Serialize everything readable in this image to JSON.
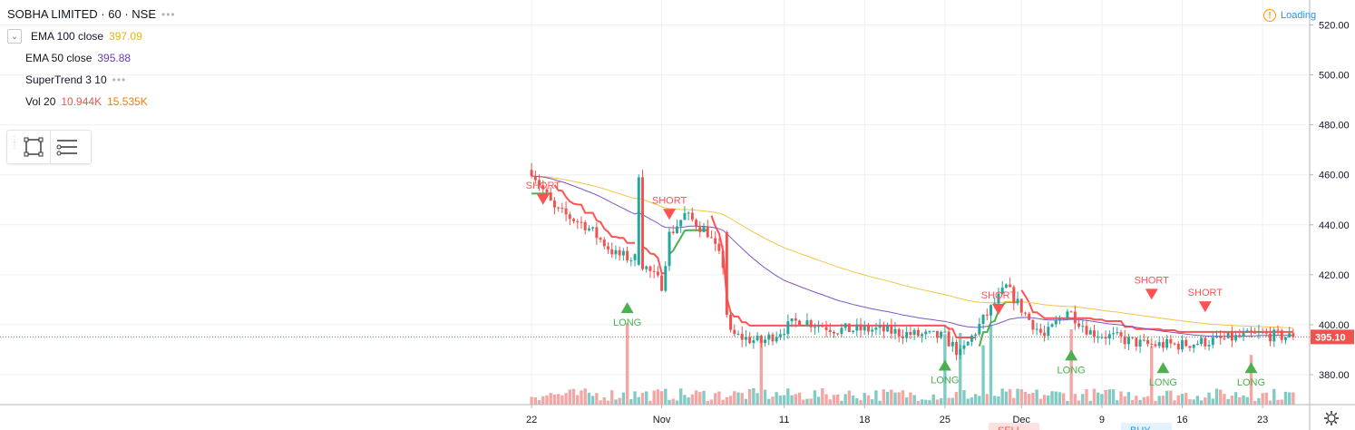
{
  "header": {
    "symbol": "SOBHA LIMITED · 60 · NSE",
    "collapse_glyph": "⌄"
  },
  "indicators": [
    {
      "name": "EMA 100 close",
      "value": "397.09",
      "color": "#e8b20f"
    },
    {
      "name": "EMA 50 close",
      "value": "395.88",
      "color": "#673ab7"
    },
    {
      "name": "SuperTrend 3 10",
      "value": "",
      "color": "#131722"
    },
    {
      "name": "Vol 20",
      "value": "10.944K",
      "value2": "15.535K",
      "color": "#ef5350",
      "color2": "#f57c00"
    }
  ],
  "status": {
    "loading_label": "Loading",
    "warn_glyph": "!"
  },
  "colors": {
    "up": "#26a69a",
    "down": "#ef5350",
    "ema100": "#f4c542",
    "ema50": "#7e57c2",
    "st_long": "#4caf50",
    "st_short": "#ff5252",
    "last_price": "#ef5350",
    "vol_up": "#80cbc4",
    "vol_down": "#f4a6a4",
    "grid": "#eef0f3"
  },
  "chart_data": {
    "type": "candlestick",
    "y_axis": {
      "ticks": [
        380,
        400,
        420,
        440,
        460,
        480,
        500,
        520
      ],
      "labels": [
        "380.00",
        "400.00",
        "420.00",
        "440.00",
        "460.00",
        "480.00",
        "500.00",
        "520.00"
      ],
      "range": [
        368,
        530
      ]
    },
    "x_axis": {
      "labels": [
        "22",
        "Nov",
        "11",
        "18",
        "25",
        "Dec",
        "9",
        "16",
        "23"
      ],
      "tick_index": [
        0,
        34,
        66,
        87,
        108,
        128,
        149,
        170,
        191
      ]
    },
    "last_price": 395.1,
    "last_price_label": "395.10",
    "signals": [
      {
        "type": "SHORT",
        "index": 3,
        "price": 448
      },
      {
        "type": "LONG",
        "index": 25,
        "price": 409
      },
      {
        "type": "SHORT",
        "index": 36,
        "price": 442
      },
      {
        "type": "LONG",
        "index": 108,
        "price": 386
      },
      {
        "type": "SHORT",
        "index": 122,
        "price": 404
      },
      {
        "type": "LONG",
        "index": 141,
        "price": 390
      },
      {
        "type": "SHORT",
        "index": 162,
        "price": 410
      },
      {
        "type": "LONG",
        "index": 165,
        "price": 385
      },
      {
        "type": "SHORT",
        "index": 176,
        "price": 405
      },
      {
        "type": "LONG",
        "index": 188,
        "price": 385
      }
    ],
    "bottom_partial_labels": [
      "SELL",
      "BUY"
    ],
    "legend": "top-left",
    "grid": true
  }
}
